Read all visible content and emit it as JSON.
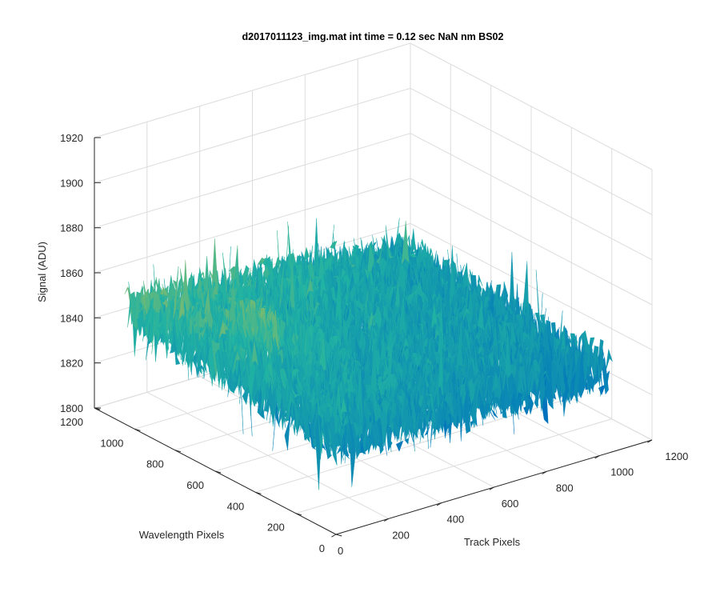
{
  "chart_data": {
    "type": "surface",
    "title": "d2017011123_img.mat int time = 0.12 sec  NaN nm BS02",
    "xlabel": "Track Pixels",
    "ylabel": "Wavelength Pixels",
    "zlabel": "Signal (ADU)",
    "xlim": [
      0,
      1200
    ],
    "ylim": [
      0,
      1200
    ],
    "zlim": [
      1800,
      1920
    ],
    "xticks": [
      0,
      200,
      400,
      600,
      800,
      1000,
      1200
    ],
    "yticks": [
      0,
      200,
      400,
      600,
      800,
      1000,
      1200
    ],
    "zticks": [
      1800,
      1820,
      1840,
      1860,
      1880,
      1900,
      1920
    ],
    "grid": true,
    "colormap": "parula",
    "colors": {
      "low": "#0072bd",
      "mid": "#21b3a3",
      "high": "#f4c42a"
    },
    "series": [
      {
        "description_points_y_at_x": [
          {
            "x": 0,
            "y_profile": [
              {
                "y": 1050,
                "z": 1865
              },
              {
                "y": 800,
                "z": 1850
              },
              {
                "y": 600,
                "z": 1843
              },
              {
                "y": 400,
                "z": 1843
              },
              {
                "y": 200,
                "z": 1840
              },
              {
                "y": 0,
                "z": 1837
              }
            ]
          },
          {
            "x": 600,
            "y_profile": [
              {
                "y": 1050,
                "z": 1848
              },
              {
                "y": 800,
                "z": 1845
              },
              {
                "y": 600,
                "z": 1842
              },
              {
                "y": 400,
                "z": 1840
              },
              {
                "y": 200,
                "z": 1838
              },
              {
                "y": 0,
                "z": 1835
              }
            ]
          },
          {
            "x": 1050,
            "y_profile": [
              {
                "y": 1050,
                "z": 1845
              },
              {
                "y": 800,
                "z": 1842
              },
              {
                "y": 600,
                "z": 1840
              },
              {
                "y": 400,
                "z": 1838
              },
              {
                "y": 200,
                "z": 1836
              },
              {
                "y": 0,
                "z": 1832
              }
            ]
          }
        ],
        "data_extent": {
          "x": [
            0,
            1050
          ],
          "y": [
            0,
            1050
          ]
        }
      }
    ]
  }
}
